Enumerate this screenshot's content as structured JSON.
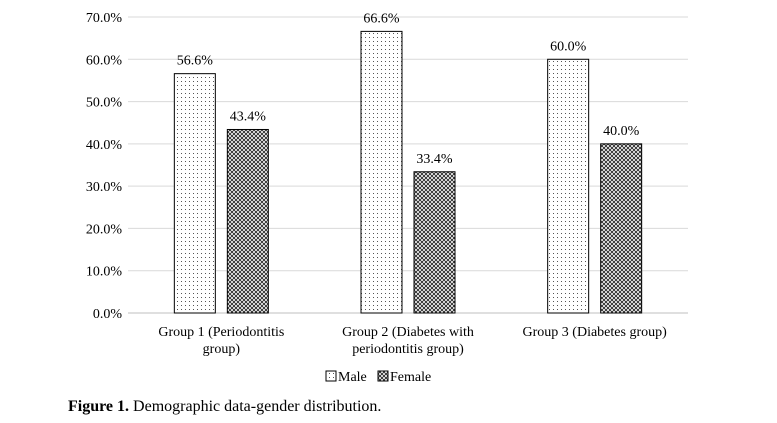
{
  "chart_data": {
    "type": "bar",
    "categories": [
      [
        "Group 1 (Periodontitis",
        "group)"
      ],
      [
        "Group 2 (Diabetes with",
        "periodontitis group)"
      ],
      [
        "Group 3 (Diabetes group)"
      ]
    ],
    "series": [
      {
        "name": "Male",
        "values": [
          56.6,
          66.6,
          60.0
        ],
        "labels": [
          "56.6%",
          "66.6%",
          "60.0%"
        ],
        "pattern": "dots"
      },
      {
        "name": "Female",
        "values": [
          43.4,
          33.4,
          40.0
        ],
        "labels": [
          "43.4%",
          "33.4%",
          "40.0%"
        ],
        "pattern": "cross"
      }
    ],
    "ylim": [
      0,
      70
    ],
    "yticks": [
      "0.0%",
      "10.0%",
      "20.0%",
      "30.0%",
      "40.0%",
      "50.0%",
      "60.0%",
      "70.0%"
    ],
    "grid": true,
    "legend_position": "bottom",
    "colors": {
      "bar_border": "#000000",
      "grid": "#d9d9d9",
      "axis": "#bfbfbf"
    }
  },
  "caption": {
    "label": "Figure 1.",
    "text": " Demographic data-gender distribution."
  }
}
